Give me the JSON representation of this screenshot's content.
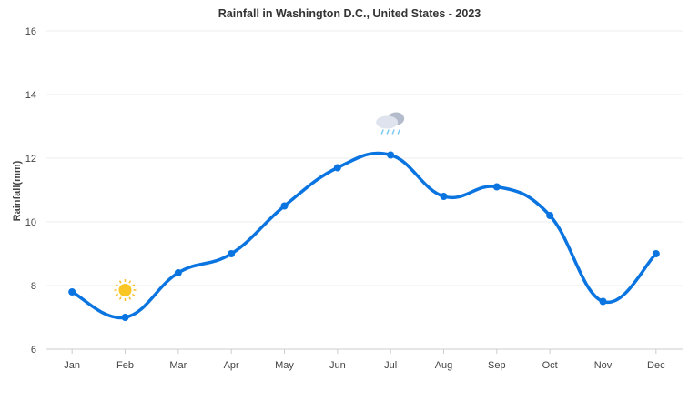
{
  "chart_data": {
    "type": "line",
    "title": "Rainfall in Washington D.C., United States - 2023",
    "xlabel": "",
    "ylabel": "Rainfall(mm)",
    "categories": [
      "Jan",
      "Feb",
      "Mar",
      "Apr",
      "May",
      "Jun",
      "Jul",
      "Aug",
      "Sep",
      "Oct",
      "Nov",
      "Dec"
    ],
    "values": [
      7.8,
      7.0,
      8.4,
      9.0,
      10.5,
      11.7,
      12.1,
      10.8,
      11.1,
      10.2,
      7.5,
      9.0
    ],
    "ylim": [
      6,
      16
    ],
    "yticks": [
      6,
      8,
      10,
      12,
      14,
      16
    ],
    "grid": true,
    "line_style": "spline",
    "line_color": "#0a74e0",
    "annotations": [
      {
        "category": "Feb",
        "icon": "sun-icon"
      },
      {
        "category": "Jul",
        "icon": "rain-cloud-icon"
      }
    ]
  }
}
